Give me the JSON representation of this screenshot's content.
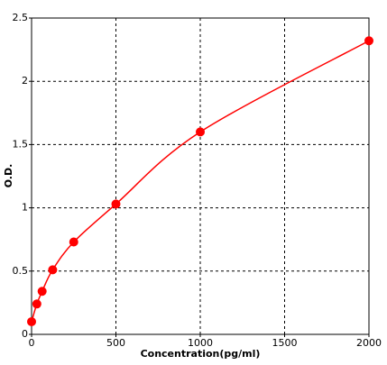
{
  "chart_data": {
    "type": "scatter",
    "x_label": "Concentration(pg/ml)",
    "y_label": "O.D.",
    "series": [
      {
        "color": "#ff0000",
        "x": [
          0,
          31.25,
          62.5,
          125,
          250,
          500,
          1000,
          2000
        ],
        "values": [
          0.1,
          0.24,
          0.34,
          0.51,
          0.73,
          1.03,
          1.6,
          2.32
        ]
      }
    ],
    "line": true,
    "smooth": true,
    "xlim": [
      0,
      2000
    ],
    "xticks": [
      0,
      500,
      1000,
      1500,
      2000
    ],
    "ylim": [
      0,
      2.5
    ],
    "yticks": [
      0,
      0.5,
      1,
      1.5,
      2,
      2.5
    ],
    "grid": true
  }
}
